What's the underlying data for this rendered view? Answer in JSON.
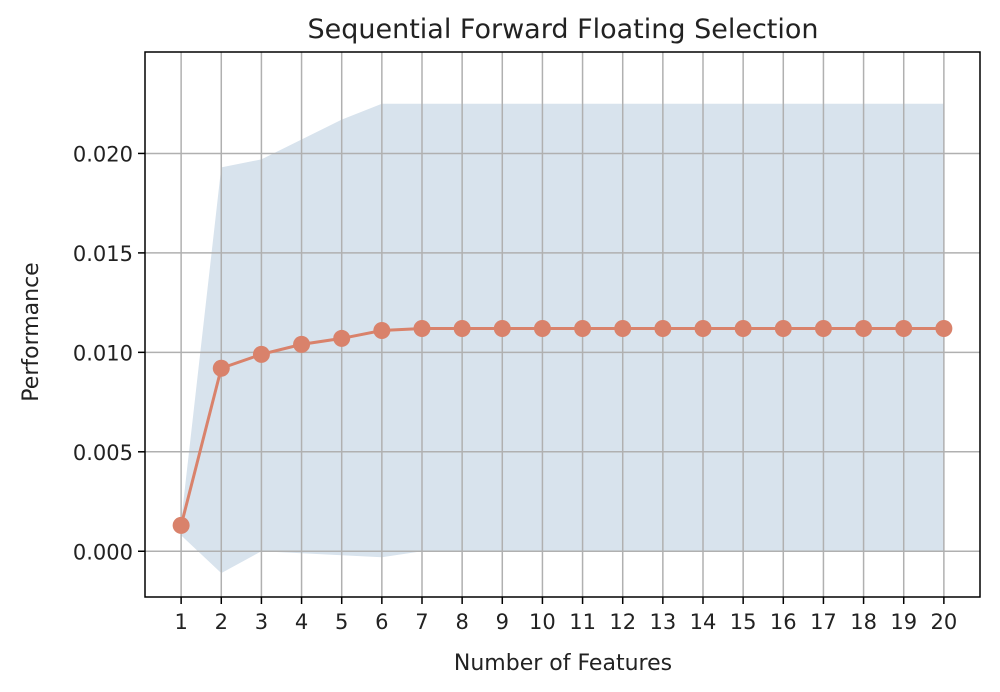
{
  "chart_data": {
    "type": "line",
    "title": "Sequential Forward Floating Selection",
    "xlabel": "Number of Features",
    "ylabel": "Performance",
    "x": [
      1,
      2,
      3,
      4,
      5,
      6,
      7,
      8,
      9,
      10,
      11,
      12,
      13,
      14,
      15,
      16,
      17,
      18,
      19,
      20
    ],
    "series": [
      {
        "values": [
          0.0013,
          0.0092,
          0.0099,
          0.0104,
          0.0107,
          0.0111,
          0.0112,
          0.0112,
          0.0112,
          0.0112,
          0.0112,
          0.0112,
          0.0112,
          0.0112,
          0.0112,
          0.0112,
          0.0112,
          0.0112,
          0.0112,
          0.0112
        ],
        "band_upper": [
          0.0015,
          0.0193,
          0.0197,
          0.0207,
          0.0217,
          0.0225,
          0.0225,
          0.0225,
          0.0225,
          0.0225,
          0.0225,
          0.0225,
          0.0225,
          0.0225,
          0.0225,
          0.0225,
          0.0225,
          0.0225,
          0.0225,
          0.0225
        ],
        "band_lower": [
          0.0008,
          -0.0011,
          0.0,
          -0.0001,
          -0.0002,
          -0.0003,
          0.0,
          0.0,
          0.0,
          0.0,
          0.0,
          0.0,
          0.0,
          0.0,
          0.0,
          0.0,
          0.0,
          0.0,
          0.0,
          0.0
        ]
      }
    ],
    "xticks": [
      "1",
      "2",
      "3",
      "4",
      "5",
      "6",
      "7",
      "8",
      "9",
      "10",
      "11",
      "12",
      "13",
      "14",
      "15",
      "16",
      "17",
      "18",
      "19",
      "20"
    ],
    "yticks": [
      "0.000",
      "0.005",
      "0.010",
      "0.015",
      "0.020"
    ],
    "ytick_values": [
      0.0,
      0.005,
      0.01,
      0.015,
      0.02
    ],
    "xlim": [
      0.1,
      20.9
    ],
    "ylim": [
      -0.0023,
      0.0251
    ],
    "grid": true,
    "colors": {
      "line": "#d9826b",
      "band": "#d8e3ed",
      "grid": "#b0b0b0",
      "axes": "#000000"
    }
  }
}
